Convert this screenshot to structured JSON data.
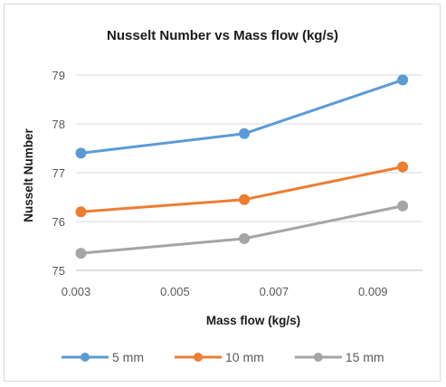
{
  "chart_data": {
    "type": "line",
    "title": "Nusselt Number vs Mass flow (kg/s)",
    "xlabel": "Mass flow  (kg/s)",
    "ylabel": "Nusselt Number",
    "xlim": [
      0.003,
      0.01
    ],
    "ylim": [
      75,
      79
    ],
    "x_ticks": [
      "0.003",
      "0.005",
      "0.007",
      "0.009"
    ],
    "x_tick_values": [
      0.003,
      0.005,
      0.007,
      0.009
    ],
    "y_ticks": [
      "75",
      "76",
      "77",
      "78",
      "79"
    ],
    "y_tick_values": [
      75,
      76,
      77,
      78,
      79
    ],
    "grid": "horizontal",
    "legend_position": "bottom",
    "x": [
      0.0031,
      0.0064,
      0.0096
    ],
    "series": [
      {
        "name": "5 mm",
        "color": "#5b9bd5",
        "values": [
          77.4,
          77.8,
          78.9
        ]
      },
      {
        "name": "10 mm",
        "color": "#ed7d31",
        "values": [
          76.2,
          76.45,
          77.12
        ]
      },
      {
        "name": "15 mm",
        "color": "#a5a5a5",
        "values": [
          75.35,
          75.65,
          76.32
        ]
      }
    ]
  }
}
